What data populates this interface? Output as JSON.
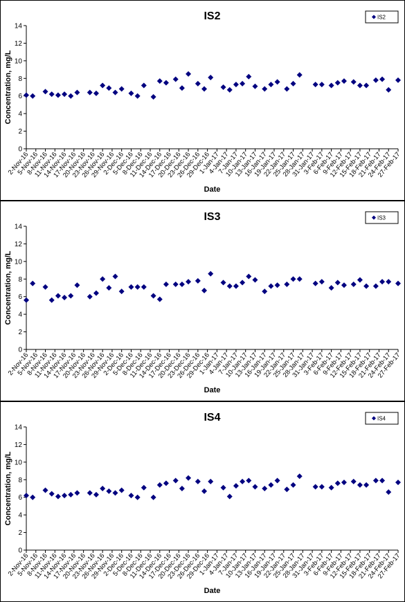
{
  "chart_data": [
    {
      "type": "scatter",
      "title": "IS2",
      "x_label": "Date",
      "y_label": "Concentration, mg/L",
      "legend": "upper right",
      "x": [
        "2016-11-02",
        "2016-11-04",
        "2016-11-08",
        "2016-11-10",
        "2016-11-12",
        "2016-11-14",
        "2016-11-16",
        "2016-11-18",
        "2016-11-22",
        "2016-11-24",
        "2016-11-26",
        "2016-11-28",
        "2016-11-30",
        "2016-12-02",
        "2016-12-05",
        "2016-12-07",
        "2016-12-09",
        "2016-12-12",
        "2016-12-14",
        "2016-12-16",
        "2016-12-19",
        "2016-12-21",
        "2016-12-23",
        "2016-12-26",
        "2016-12-28",
        "2016-12-30",
        "2017-01-03",
        "2017-01-05",
        "2017-01-07",
        "2017-01-09",
        "2017-01-11",
        "2017-01-13",
        "2017-01-16",
        "2017-01-18",
        "2017-01-20",
        "2017-01-23",
        "2017-01-25",
        "2017-01-27",
        "2017-02-01",
        "2017-02-03",
        "2017-02-06",
        "2017-02-08",
        "2017-02-10",
        "2017-02-13",
        "2017-02-15",
        "2017-02-17",
        "2017-02-20",
        "2017-02-22",
        "2017-02-24",
        "2017-02-27"
      ],
      "series": [
        {
          "name": "IS2",
          "color": "#000080",
          "values": [
            6.1,
            6.0,
            6.5,
            6.2,
            6.1,
            6.2,
            6.0,
            6.4,
            6.4,
            6.3,
            7.2,
            6.9,
            6.4,
            6.8,
            6.3,
            6.0,
            7.2,
            5.9,
            7.7,
            7.5,
            7.9,
            6.9,
            8.5,
            7.4,
            6.8,
            8.1,
            7.0,
            6.7,
            7.3,
            7.4,
            8.2,
            7.1,
            6.8,
            7.3,
            7.6,
            6.8,
            7.4,
            8.4,
            7.3,
            7.3,
            7.2,
            7.5,
            7.7,
            7.6,
            7.2,
            7.2,
            7.8,
            7.9,
            6.7,
            7.8
          ]
        }
      ],
      "xlim": [
        "2016-11-02",
        "2017-02-27"
      ],
      "xticks": [
        {
          "value": "2016-11-02",
          "label": "2-Nov-16"
        },
        {
          "value": "2016-11-05",
          "label": "5-Nov-16"
        },
        {
          "value": "2016-11-08",
          "label": "8-Nov-16"
        },
        {
          "value": "2016-11-11",
          "label": "11-Nov-16"
        },
        {
          "value": "2016-11-14",
          "label": "14-Nov-16"
        },
        {
          "value": "2016-11-17",
          "label": "17-Nov-16"
        },
        {
          "value": "2016-11-20",
          "label": "20-Nov-16"
        },
        {
          "value": "2016-11-23",
          "label": "23-Nov-16"
        },
        {
          "value": "2016-11-26",
          "label": "26-Nov-16"
        },
        {
          "value": "2016-11-29",
          "label": "29-Nov-16"
        },
        {
          "value": "2016-12-02",
          "label": "2-Dec-16"
        },
        {
          "value": "2016-12-05",
          "label": "5-Dec-16"
        },
        {
          "value": "2016-12-08",
          "label": "8-Dec-16"
        },
        {
          "value": "2016-12-11",
          "label": "11-Dec-16"
        },
        {
          "value": "2016-12-14",
          "label": "14-Dec-16"
        },
        {
          "value": "2016-12-17",
          "label": "17-Dec-16"
        },
        {
          "value": "2016-12-20",
          "label": "20-Dec-16"
        },
        {
          "value": "2016-12-23",
          "label": "23-Dec-16"
        },
        {
          "value": "2016-12-26",
          "label": "26-Dec-16"
        },
        {
          "value": "2016-12-29",
          "label": "29-Dec-16"
        },
        {
          "value": "2017-01-01",
          "label": "1-Jan-17"
        },
        {
          "value": "2017-01-04",
          "label": "4-Jan-17"
        },
        {
          "value": "2017-01-07",
          "label": "7-Jan-17"
        },
        {
          "value": "2017-01-10",
          "label": "10-Jan-17"
        },
        {
          "value": "2017-01-13",
          "label": "13-Jan-17"
        },
        {
          "value": "2017-01-16",
          "label": "16-Jan-17"
        },
        {
          "value": "2017-01-19",
          "label": "19-Jan-17"
        },
        {
          "value": "2017-01-22",
          "label": "22-Jan-17"
        },
        {
          "value": "2017-01-25",
          "label": "25-Jan-17"
        },
        {
          "value": "2017-01-28",
          "label": "28-Jan-17"
        },
        {
          "value": "2017-01-31",
          "label": "31-Jan-17"
        },
        {
          "value": "2017-02-03",
          "label": "3-Feb-17"
        },
        {
          "value": "2017-02-06",
          "label": "6-Feb-17"
        },
        {
          "value": "2017-02-09",
          "label": "9-Feb-17"
        },
        {
          "value": "2017-02-12",
          "label": "12-Feb-17"
        },
        {
          "value": "2017-02-15",
          "label": "15-Feb-17"
        },
        {
          "value": "2017-02-18",
          "label": "18-Feb-17"
        },
        {
          "value": "2017-02-21",
          "label": "21-Feb-17"
        },
        {
          "value": "2017-02-24",
          "label": "24-Feb-17"
        },
        {
          "value": "2017-02-27",
          "label": "27-Feb-17"
        }
      ],
      "ylim": [
        0,
        14
      ],
      "yticks": [
        0,
        2,
        4,
        6,
        8,
        10,
        12,
        14
      ]
    },
    {
      "type": "scatter",
      "title": "IS3",
      "x_label": "Date",
      "y_label": "Concentration, mg/L",
      "legend": "upper right",
      "x": [
        "2016-11-02",
        "2016-11-04",
        "2016-11-08",
        "2016-11-10",
        "2016-11-12",
        "2016-11-14",
        "2016-11-16",
        "2016-11-18",
        "2016-11-22",
        "2016-11-24",
        "2016-11-26",
        "2016-11-28",
        "2016-11-30",
        "2016-12-02",
        "2016-12-05",
        "2016-12-07",
        "2016-12-09",
        "2016-12-12",
        "2016-12-14",
        "2016-12-16",
        "2016-12-19",
        "2016-12-21",
        "2016-12-23",
        "2016-12-26",
        "2016-12-28",
        "2016-12-30",
        "2017-01-03",
        "2017-01-05",
        "2017-01-07",
        "2017-01-09",
        "2017-01-11",
        "2017-01-13",
        "2017-01-16",
        "2017-01-18",
        "2017-01-20",
        "2017-01-23",
        "2017-01-25",
        "2017-01-27",
        "2017-02-01",
        "2017-02-03",
        "2017-02-06",
        "2017-02-08",
        "2017-02-10",
        "2017-02-13",
        "2017-02-15",
        "2017-02-17",
        "2017-02-20",
        "2017-02-22",
        "2017-02-24",
        "2017-02-27"
      ],
      "series": [
        {
          "name": "IS3",
          "color": "#000080",
          "values": [
            5.6,
            7.5,
            7.1,
            5.6,
            6.1,
            5.9,
            6.1,
            7.3,
            6.0,
            6.4,
            8.0,
            7.0,
            8.3,
            6.6,
            7.1,
            7.1,
            7.1,
            6.1,
            5.7,
            7.4,
            7.4,
            7.4,
            7.7,
            7.8,
            6.7,
            8.6,
            7.6,
            7.2,
            7.2,
            7.6,
            8.3,
            7.9,
            6.6,
            7.2,
            7.3,
            7.4,
            8.0,
            8.0,
            7.5,
            7.7,
            7.0,
            7.6,
            7.3,
            7.4,
            7.9,
            7.2,
            7.2,
            7.7,
            7.7,
            7.5
          ]
        }
      ],
      "xlim": [
        "2016-11-02",
        "2017-02-27"
      ],
      "xticks": [
        {
          "value": "2016-11-02",
          "label": "2-Nov-16"
        },
        {
          "value": "2016-11-05",
          "label": "5-Nov-16"
        },
        {
          "value": "2016-11-08",
          "label": "8-Nov-16"
        },
        {
          "value": "2016-11-11",
          "label": "11-Nov-16"
        },
        {
          "value": "2016-11-14",
          "label": "14-Nov-16"
        },
        {
          "value": "2016-11-17",
          "label": "17-Nov-16"
        },
        {
          "value": "2016-11-20",
          "label": "20-Nov-16"
        },
        {
          "value": "2016-11-23",
          "label": "23-Nov-16"
        },
        {
          "value": "2016-11-26",
          "label": "26-Nov-16"
        },
        {
          "value": "2016-11-29",
          "label": "29-Nov-16"
        },
        {
          "value": "2016-12-02",
          "label": "2-Dec-16"
        },
        {
          "value": "2016-12-05",
          "label": "5-Dec-16"
        },
        {
          "value": "2016-12-08",
          "label": "8-Dec-16"
        },
        {
          "value": "2016-12-11",
          "label": "11-Dec-16"
        },
        {
          "value": "2016-12-14",
          "label": "14-Dec-16"
        },
        {
          "value": "2016-12-17",
          "label": "17-Dec-16"
        },
        {
          "value": "2016-12-20",
          "label": "20-Dec-16"
        },
        {
          "value": "2016-12-23",
          "label": "23-Dec-16"
        },
        {
          "value": "2016-12-26",
          "label": "26-Dec-16"
        },
        {
          "value": "2016-12-29",
          "label": "29-Dec-16"
        },
        {
          "value": "2017-01-01",
          "label": "1-Jan-17"
        },
        {
          "value": "2017-01-04",
          "label": "4-Jan-17"
        },
        {
          "value": "2017-01-07",
          "label": "7-Jan-17"
        },
        {
          "value": "2017-01-10",
          "label": "10-Jan-17"
        },
        {
          "value": "2017-01-13",
          "label": "13-Jan-17"
        },
        {
          "value": "2017-01-16",
          "label": "16-Jan-17"
        },
        {
          "value": "2017-01-19",
          "label": "19-Jan-17"
        },
        {
          "value": "2017-01-22",
          "label": "22-Jan-17"
        },
        {
          "value": "2017-01-25",
          "label": "25-Jan-17"
        },
        {
          "value": "2017-01-28",
          "label": "28-Jan-17"
        },
        {
          "value": "2017-01-31",
          "label": "31-Jan-17"
        },
        {
          "value": "2017-02-03",
          "label": "3-Feb-17"
        },
        {
          "value": "2017-02-06",
          "label": "6-Feb-17"
        },
        {
          "value": "2017-02-09",
          "label": "9-Feb-17"
        },
        {
          "value": "2017-02-12",
          "label": "12-Feb-17"
        },
        {
          "value": "2017-02-15",
          "label": "15-Feb-17"
        },
        {
          "value": "2017-02-18",
          "label": "18-Feb-17"
        },
        {
          "value": "2017-02-21",
          "label": "21-Feb-17"
        },
        {
          "value": "2017-02-24",
          "label": "24-Feb-17"
        },
        {
          "value": "2017-02-27",
          "label": "27-Feb-17"
        }
      ],
      "ylim": [
        0,
        14
      ],
      "yticks": [
        0,
        2,
        4,
        6,
        8,
        10,
        12,
        14
      ]
    },
    {
      "type": "scatter",
      "title": "IS4",
      "x_label": "Date",
      "y_label": "Concentration, mg/L",
      "legend": "upper right",
      "x": [
        "2016-11-02",
        "2016-11-04",
        "2016-11-08",
        "2016-11-10",
        "2016-11-12",
        "2016-11-14",
        "2016-11-16",
        "2016-11-18",
        "2016-11-22",
        "2016-11-24",
        "2016-11-26",
        "2016-11-28",
        "2016-11-30",
        "2016-12-02",
        "2016-12-05",
        "2016-12-07",
        "2016-12-09",
        "2016-12-12",
        "2016-12-14",
        "2016-12-16",
        "2016-12-19",
        "2016-12-21",
        "2016-12-23",
        "2016-12-26",
        "2016-12-28",
        "2016-12-30",
        "2017-01-03",
        "2017-01-05",
        "2017-01-07",
        "2017-01-09",
        "2017-01-11",
        "2017-01-13",
        "2017-01-16",
        "2017-01-18",
        "2017-01-20",
        "2017-01-23",
        "2017-01-25",
        "2017-01-27",
        "2017-02-01",
        "2017-02-03",
        "2017-02-06",
        "2017-02-08",
        "2017-02-10",
        "2017-02-13",
        "2017-02-15",
        "2017-02-17",
        "2017-02-20",
        "2017-02-22",
        "2017-02-24",
        "2017-02-27"
      ],
      "series": [
        {
          "name": "IS4",
          "color": "#000080",
          "values": [
            6.2,
            6.0,
            6.8,
            6.4,
            6.1,
            6.2,
            6.3,
            6.5,
            6.5,
            6.3,
            7.0,
            6.7,
            6.5,
            6.8,
            6.2,
            6.0,
            7.1,
            6.0,
            7.4,
            7.6,
            7.9,
            7.0,
            8.2,
            7.8,
            6.7,
            7.8,
            7.1,
            6.1,
            7.3,
            7.8,
            7.9,
            7.2,
            7.0,
            7.4,
            7.9,
            6.9,
            7.4,
            8.4,
            7.2,
            7.2,
            7.1,
            7.6,
            7.7,
            7.8,
            7.4,
            7.4,
            7.9,
            7.9,
            6.6,
            7.7
          ]
        }
      ],
      "xlim": [
        "2016-11-02",
        "2017-02-27"
      ],
      "xticks": [
        {
          "value": "2016-11-02",
          "label": "2-Nov-16"
        },
        {
          "value": "2016-11-05",
          "label": "5-Nov-16"
        },
        {
          "value": "2016-11-08",
          "label": "8-Nov-16"
        },
        {
          "value": "2016-11-11",
          "label": "11-Nov-16"
        },
        {
          "value": "2016-11-14",
          "label": "14-Nov-16"
        },
        {
          "value": "2016-11-17",
          "label": "17-Nov-16"
        },
        {
          "value": "2016-11-20",
          "label": "20-Nov-16"
        },
        {
          "value": "2016-11-23",
          "label": "23-Nov-16"
        },
        {
          "value": "2016-11-26",
          "label": "26-Nov-16"
        },
        {
          "value": "2016-11-29",
          "label": "29-Nov-16"
        },
        {
          "value": "2016-12-02",
          "label": "2-Dec-16"
        },
        {
          "value": "2016-12-05",
          "label": "5-Dec-16"
        },
        {
          "value": "2016-12-08",
          "label": "8-Dec-16"
        },
        {
          "value": "2016-12-11",
          "label": "11-Dec-16"
        },
        {
          "value": "2016-12-14",
          "label": "14-Dec-16"
        },
        {
          "value": "2016-12-17",
          "label": "17-Dec-16"
        },
        {
          "value": "2016-12-20",
          "label": "20-Dec-16"
        },
        {
          "value": "2016-12-23",
          "label": "23-Dec-16"
        },
        {
          "value": "2016-12-26",
          "label": "26-Dec-16"
        },
        {
          "value": "2016-12-29",
          "label": "29-Dec-16"
        },
        {
          "value": "2017-01-01",
          "label": "1-Jan-17"
        },
        {
          "value": "2017-01-04",
          "label": "4-Jan-17"
        },
        {
          "value": "2017-01-07",
          "label": "7-Jan-17"
        },
        {
          "value": "2017-01-10",
          "label": "10-Jan-17"
        },
        {
          "value": "2017-01-13",
          "label": "13-Jan-17"
        },
        {
          "value": "2017-01-16",
          "label": "16-Jan-17"
        },
        {
          "value": "2017-01-19",
          "label": "19-Jan-17"
        },
        {
          "value": "2017-01-22",
          "label": "22-Jan-17"
        },
        {
          "value": "2017-01-25",
          "label": "25-Jan-17"
        },
        {
          "value": "2017-01-28",
          "label": "28-Jan-17"
        },
        {
          "value": "2017-01-31",
          "label": "31-Jan-17"
        },
        {
          "value": "2017-02-03",
          "label": "3-Feb-17"
        },
        {
          "value": "2017-02-06",
          "label": "6-Feb-17"
        },
        {
          "value": "2017-02-09",
          "label": "9-Feb-17"
        },
        {
          "value": "2017-02-12",
          "label": "12-Feb-17"
        },
        {
          "value": "2017-02-15",
          "label": "15-Feb-17"
        },
        {
          "value": "2017-02-18",
          "label": "18-Feb-17"
        },
        {
          "value": "2017-02-21",
          "label": "21-Feb-17"
        },
        {
          "value": "2017-02-24",
          "label": "24-Feb-17"
        },
        {
          "value": "2017-02-27",
          "label": "27-Feb-17"
        }
      ],
      "ylim": [
        0,
        14
      ],
      "yticks": [
        0,
        2,
        4,
        6,
        8,
        10,
        12,
        14
      ]
    }
  ]
}
